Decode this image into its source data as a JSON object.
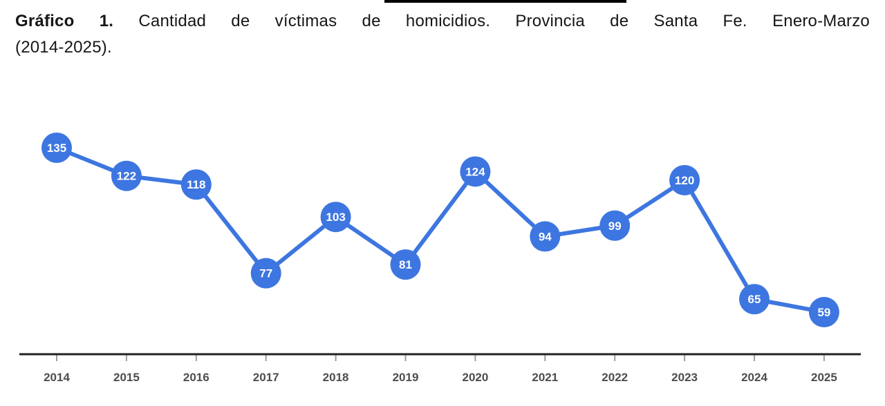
{
  "title": {
    "prefix": "Gráfico 1.",
    "rest": "Cantidad de víctimas de homicidios. Provincia de Santa Fe. Enero-Marzo",
    "line2": "(2014-2025)."
  },
  "chart_data": {
    "type": "line",
    "title": "Gráfico 1. Cantidad de víctimas de homicidios. Provincia de Santa Fe. Enero-Marzo (2014-2025).",
    "categories": [
      "2014",
      "2015",
      "2016",
      "2017",
      "2018",
      "2019",
      "2020",
      "2021",
      "2022",
      "2023",
      "2024",
      "2025"
    ],
    "values": [
      135,
      122,
      118,
      77,
      103,
      81,
      124,
      94,
      99,
      120,
      65,
      59
    ],
    "xlabel": "",
    "ylabel": "",
    "legend": "none",
    "grid": false,
    "point_labels_shown": true,
    "colors": {
      "line": "#3d76e0",
      "marker": "#3d76e0",
      "point_label": "#ffffff",
      "axis_line": "#212121",
      "tick": "#9e9e9e",
      "axis_label": "#4d4d4d",
      "title_text": "#161616",
      "top_line": "#000000",
      "background": "#ffffff"
    }
  }
}
